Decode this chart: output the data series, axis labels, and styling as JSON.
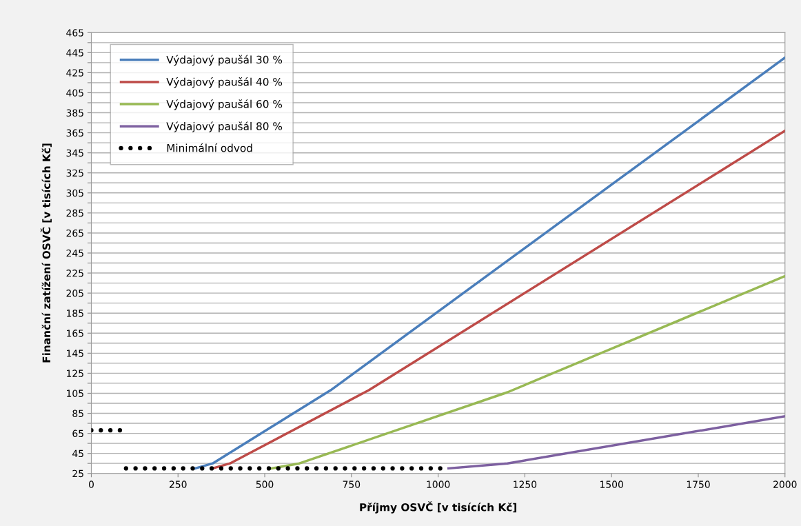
{
  "chart_data": {
    "type": "line",
    "xlabel": "Příjmy OSVČ [v tisících Kč]",
    "ylabel": "Finanční zatížení OSVČ [v tisících Kč]",
    "xlim": [
      0,
      2000
    ],
    "xticks": [
      0,
      250,
      500,
      750,
      1000,
      1250,
      1500,
      1750,
      2000
    ],
    "ylim": [
      25,
      465
    ],
    "yticks": [
      25,
      {
        "value": 35,
        "label": null
      },
      45,
      {
        "value": 55,
        "label": null
      },
      65,
      {
        "value": 75,
        "label": null
      },
      85,
      {
        "value": 95,
        "label": null
      },
      105,
      {
        "value": 115,
        "label": null
      },
      125,
      {
        "value": 135,
        "label": null
      },
      145,
      {
        "value": 155,
        "label": null
      },
      165,
      {
        "value": 175,
        "label": null
      },
      185,
      {
        "value": 195,
        "label": null
      },
      205,
      {
        "value": 215,
        "label": null
      },
      225,
      {
        "value": 235,
        "label": null
      },
      245,
      {
        "value": 255,
        "label": null
      },
      265,
      {
        "value": 275,
        "label": null
      },
      285,
      {
        "value": 295,
        "label": null
      },
      305,
      {
        "value": 315,
        "label": null
      },
      325,
      {
        "value": 335,
        "label": null
      },
      345,
      {
        "value": 355,
        "label": null
      },
      365,
      {
        "value": 375,
        "label": null
      },
      385,
      {
        "value": 395,
        "label": null
      },
      405,
      {
        "value": 415,
        "label": null
      },
      425,
      {
        "value": 435,
        "label": null
      },
      445,
      {
        "value": 455,
        "label": null
      },
      465
    ],
    "grid": "y",
    "legend": "top left",
    "marker": "none",
    "series": [
      {
        "name": "Výdajový paušál 30 %",
        "color": "#4a7ebb",
        "line_style": "solid",
        "x": [
          300,
          350,
          690,
          2000
        ],
        "values": [
          30,
          35,
          108,
          440
        ]
      },
      {
        "name": "Výdajový paušál 40 %",
        "color": "#be4b48",
        "line_style": "solid",
        "x": [
          350,
          400,
          800,
          2000
        ],
        "values": [
          30,
          35,
          108,
          367
        ]
      },
      {
        "name": "Výdajový paušál 60 %",
        "color": "#98b954",
        "line_style": "solid",
        "x": [
          520,
          600,
          1200,
          2000
        ],
        "values": [
          30,
          35,
          106,
          222
        ]
      },
      {
        "name": "Výdajový paušál 80 %",
        "color": "#7d60a0",
        "line_style": "solid",
        "x": [
          1030,
          1200,
          2000
        ],
        "values": [
          30,
          35,
          82
        ]
      },
      {
        "name": "Minimální odvod",
        "color": "#000000",
        "line_style": "dotted",
        "x": [
          0,
          100,
          null,
          100,
          1020
        ],
        "values": [
          68,
          68,
          null,
          30,
          30
        ]
      }
    ]
  }
}
